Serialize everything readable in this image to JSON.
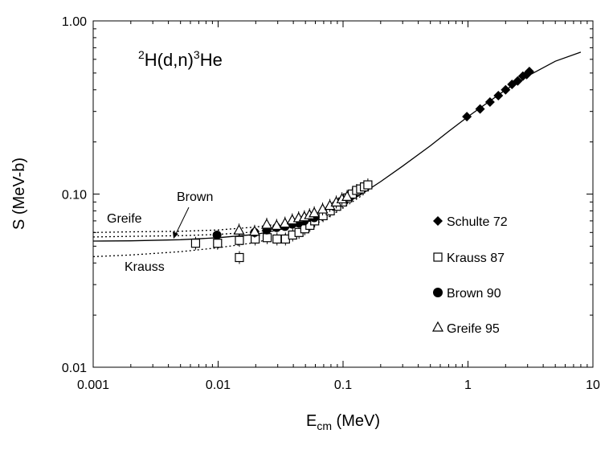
{
  "chart_data": {
    "type": "scatter",
    "reaction_label": {
      "pre_sup": "2",
      "mid": "H(d,n)",
      "mid_sup": "3",
      "post": "He"
    },
    "xlabel": {
      "main": "E",
      "sub": "cm",
      "unit": " (MeV)"
    },
    "ylabel": "S (MeV-b)",
    "x_scale": "log",
    "y_scale": "log",
    "xlim": [
      0.001,
      10
    ],
    "ylim": [
      0.01,
      1.0
    ],
    "x_ticks": [
      {
        "value": 0.001,
        "label": "0.001"
      },
      {
        "value": 0.01,
        "label": "0.01"
      },
      {
        "value": 0.1,
        "label": "0.1"
      },
      {
        "value": 1,
        "label": "1"
      },
      {
        "value": 10,
        "label": "10"
      }
    ],
    "y_ticks": [
      {
        "value": 0.01,
        "label": "0.01"
      },
      {
        "value": 0.1,
        "label": "0.10"
      },
      {
        "value": 1.0,
        "label": "1.00"
      }
    ],
    "grid": false,
    "legend_position": "right",
    "series": [
      {
        "name": "Schulte 72",
        "marker": "diamond-filled",
        "points": [
          [
            0.98,
            0.28
          ],
          [
            1.25,
            0.31
          ],
          [
            1.5,
            0.34
          ],
          [
            1.75,
            0.37
          ],
          [
            2.0,
            0.4
          ],
          [
            2.25,
            0.43
          ],
          [
            2.5,
            0.45
          ],
          [
            2.75,
            0.48
          ],
          [
            2.95,
            0.49
          ],
          [
            3.1,
            0.51
          ]
        ]
      },
      {
        "name": "Krauss 87",
        "marker": "square-open",
        "points": [
          [
            0.0066,
            0.052
          ],
          [
            0.0099,
            0.052
          ],
          [
            0.0148,
            0.043
          ],
          [
            0.0148,
            0.054
          ],
          [
            0.0198,
            0.055
          ],
          [
            0.0247,
            0.056
          ],
          [
            0.0296,
            0.055
          ],
          [
            0.0346,
            0.055
          ],
          [
            0.0395,
            0.058
          ],
          [
            0.0444,
            0.06
          ],
          [
            0.0494,
            0.063
          ],
          [
            0.0543,
            0.066
          ],
          [
            0.0593,
            0.07
          ],
          [
            0.0692,
            0.075
          ],
          [
            0.079,
            0.08
          ],
          [
            0.0889,
            0.085
          ],
          [
            0.0988,
            0.09
          ],
          [
            0.1087,
            0.095
          ],
          [
            0.1185,
            0.1
          ],
          [
            0.1284,
            0.105
          ],
          [
            0.1383,
            0.107
          ],
          [
            0.1482,
            0.11
          ],
          [
            0.158,
            0.113
          ]
        ]
      },
      {
        "name": "Brown 90",
        "marker": "circle-filled",
        "points": [
          [
            0.0098,
            0.058
          ],
          [
            0.0196,
            0.06
          ],
          [
            0.0245,
            0.062
          ],
          [
            0.0294,
            0.064
          ],
          [
            0.0343,
            0.065
          ],
          [
            0.0392,
            0.067
          ],
          [
            0.0441,
            0.068
          ],
          [
            0.049,
            0.07
          ],
          [
            0.0588,
            0.073
          ]
        ]
      },
      {
        "name": "Greife 95",
        "marker": "triangle-open",
        "points": [
          [
            0.0147,
            0.062
          ],
          [
            0.0196,
            0.061
          ],
          [
            0.0245,
            0.067
          ],
          [
            0.0294,
            0.066
          ],
          [
            0.0343,
            0.068
          ],
          [
            0.0392,
            0.071
          ],
          [
            0.0441,
            0.073
          ],
          [
            0.049,
            0.074
          ],
          [
            0.0539,
            0.076
          ],
          [
            0.0588,
            0.078
          ],
          [
            0.0686,
            0.082
          ],
          [
            0.0784,
            0.086
          ],
          [
            0.0882,
            0.09
          ],
          [
            0.098,
            0.094
          ],
          [
            0.1078,
            0.097
          ]
        ]
      }
    ],
    "fit_curve": {
      "style": "solid",
      "points": [
        [
          0.001,
          0.0535
        ],
        [
          0.002,
          0.0537
        ],
        [
          0.005,
          0.0545
        ],
        [
          0.01,
          0.056
        ],
        [
          0.02,
          0.0585
        ],
        [
          0.03,
          0.062
        ],
        [
          0.05,
          0.068
        ],
        [
          0.07,
          0.075
        ],
        [
          0.1,
          0.086
        ],
        [
          0.15,
          0.103
        ],
        [
          0.2,
          0.118
        ],
        [
          0.3,
          0.145
        ],
        [
          0.5,
          0.19
        ],
        [
          0.7,
          0.23
        ],
        [
          1.0,
          0.28
        ],
        [
          1.5,
          0.345
        ],
        [
          2.0,
          0.4
        ],
        [
          3.0,
          0.48
        ],
        [
          5.0,
          0.585
        ],
        [
          8.0,
          0.66
        ]
      ]
    },
    "extrapolation_curves": [
      {
        "label": "Greife",
        "style": "dotted",
        "points": [
          [
            0.001,
            0.06
          ],
          [
            0.002,
            0.0605
          ],
          [
            0.005,
            0.061
          ],
          [
            0.01,
            0.062
          ],
          [
            0.02,
            0.0645
          ],
          [
            0.03,
            0.067
          ],
          [
            0.05,
            0.072
          ],
          [
            0.07,
            0.078
          ],
          [
            0.1,
            0.088
          ],
          [
            0.15,
            0.104
          ]
        ]
      },
      {
        "label": "Brown",
        "style": "dotted",
        "points": [
          [
            0.001,
            0.0565
          ],
          [
            0.002,
            0.057
          ],
          [
            0.005,
            0.0575
          ],
          [
            0.01,
            0.0585
          ],
          [
            0.02,
            0.0605
          ],
          [
            0.03,
            0.063
          ],
          [
            0.05,
            0.0685
          ],
          [
            0.07,
            0.0755
          ],
          [
            0.1,
            0.086
          ],
          [
            0.15,
            0.103
          ]
        ]
      },
      {
        "label": "Krauss",
        "style": "dotted",
        "points": [
          [
            0.001,
            0.0435
          ],
          [
            0.002,
            0.0445
          ],
          [
            0.005,
            0.0465
          ],
          [
            0.01,
            0.049
          ],
          [
            0.02,
            0.0525
          ],
          [
            0.03,
            0.0565
          ],
          [
            0.05,
            0.063
          ],
          [
            0.07,
            0.071
          ],
          [
            0.1,
            0.083
          ],
          [
            0.15,
            0.101
          ]
        ]
      }
    ],
    "annotations": {
      "greife": "Greife",
      "brown": "Brown",
      "krauss": "Krauss"
    }
  }
}
